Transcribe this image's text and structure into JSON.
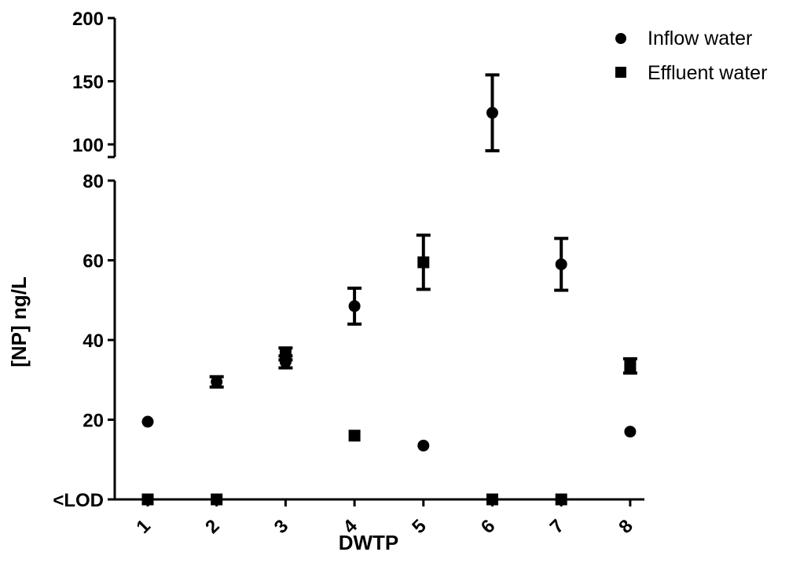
{
  "chart_data": {
    "type": "scatter",
    "title": "",
    "xlabel": "DWTP",
    "ylabel": "[NP] ng/L",
    "categories": [
      "1",
      "2",
      "3",
      "4",
      "5",
      "6",
      "7",
      "8"
    ],
    "y_axis_segments": [
      {
        "range": [
          90,
          200
        ],
        "ticks": [
          100,
          150,
          200
        ],
        "tick_labels": [
          "100",
          "150",
          "200"
        ]
      },
      {
        "range": [
          0,
          80
        ],
        "ticks": [
          0,
          20,
          40,
          60,
          80
        ],
        "tick_labels": [
          "<LOD",
          "20",
          "40",
          "60",
          "80"
        ]
      }
    ],
    "series": [
      {
        "name": "Inflow water",
        "marker": "circle",
        "points": [
          {
            "x": "1",
            "y": 19.5
          },
          {
            "x": "2",
            "y": 29.5,
            "err": 1.3
          },
          {
            "x": "3",
            "y": 34.5,
            "err": 1.5
          },
          {
            "x": "4",
            "y": 48.5,
            "err": 4.5
          },
          {
            "x": "5",
            "y": 13.5
          },
          {
            "x": "6",
            "y": 125,
            "err": 30
          },
          {
            "x": "7",
            "y": 59,
            "err": 6.5
          },
          {
            "x": "8",
            "y": 17
          }
        ]
      },
      {
        "name": "Effluent water",
        "marker": "square",
        "points": [
          {
            "x": "1",
            "y": 0
          },
          {
            "x": "2",
            "y": 0
          },
          {
            "x": "3",
            "y": 36.5,
            "err": 1.5
          },
          {
            "x": "4",
            "y": 16
          },
          {
            "x": "5",
            "y": 59.5,
            "err": 6.8
          },
          {
            "x": "6",
            "y": 0
          },
          {
            "x": "7",
            "y": 0
          },
          {
            "x": "8",
            "y": 33.5,
            "err": 1.8
          }
        ]
      }
    ],
    "legend_position": "top-right",
    "grid": false
  }
}
